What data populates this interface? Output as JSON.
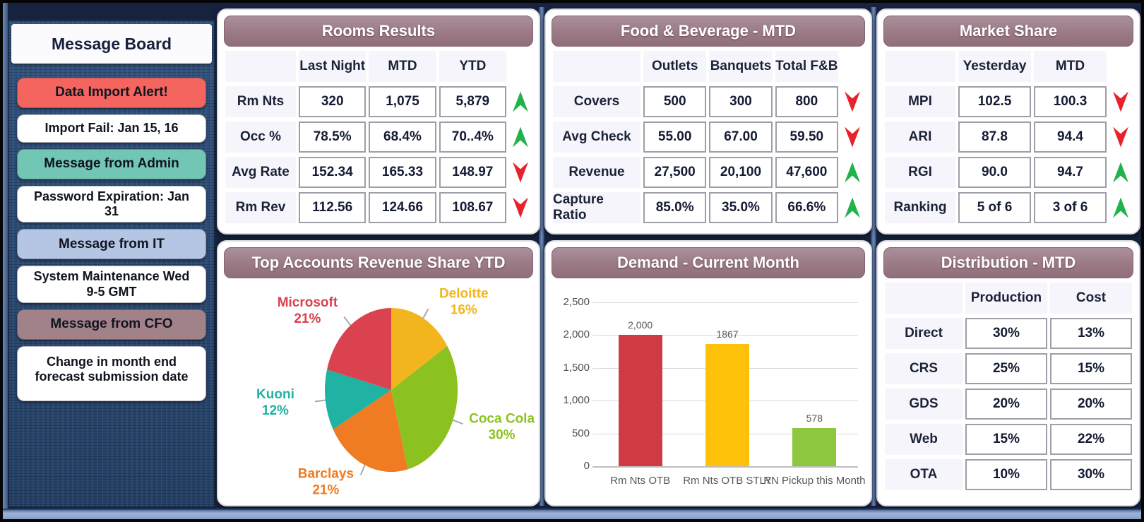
{
  "theme": {
    "band_color": "#9B7A86",
    "trend_up_color": "#21B24B",
    "trend_down_color": "#E8222B",
    "sidebar_bg": "#2C4A74",
    "panel_bg": "#FFFFFF"
  },
  "sidebar": {
    "title": "Message Board",
    "messages": [
      {
        "label": "Data Import Alert!",
        "type": "header",
        "color": "#F4655F"
      },
      {
        "label": "Import Fail: Jan 15, 16",
        "type": "detail",
        "color": "#FFFFFF"
      },
      {
        "label": "Message from Admin",
        "type": "header",
        "color": "#72C7B4"
      },
      {
        "label": "Password Expiration: Jan 31",
        "type": "detail",
        "color": "#FFFFFF"
      },
      {
        "label": "Message from IT",
        "type": "header",
        "color": "#B5C5E4"
      },
      {
        "label": "System Maintenance Wed 9-5 GMT",
        "type": "detail",
        "color": "#FFFFFF"
      },
      {
        "label": "Message from CFO",
        "type": "header",
        "color": "#A28289"
      },
      {
        "label": "Change in month end forecast submission date",
        "type": "detail",
        "color": "#FFFFFF"
      }
    ]
  },
  "panels": {
    "rooms": {
      "title": "Rooms Results",
      "columns": [
        "Last Night",
        "MTD",
        "YTD"
      ],
      "rows": [
        {
          "label": "Rm Nts",
          "values": [
            "320",
            "1,075",
            "5,879"
          ],
          "trend": "up"
        },
        {
          "label": "Occ %",
          "values": [
            "78.5%",
            "68.4%",
            "70..4%"
          ],
          "trend": "up"
        },
        {
          "label": "Avg Rate",
          "values": [
            "152.34",
            "165.33",
            "148.97"
          ],
          "trend": "down"
        },
        {
          "label": "Rm Rev",
          "values": [
            "112.56",
            "124.66",
            "108.67"
          ],
          "trend": "down"
        }
      ]
    },
    "fnb": {
      "title": "Food & Beverage - MTD",
      "columns": [
        "Outlets",
        "Banquets",
        "Total F&B"
      ],
      "rows": [
        {
          "label": "Covers",
          "values": [
            "500",
            "300",
            "800"
          ],
          "trend": "down"
        },
        {
          "label": "Avg Check",
          "values": [
            "55.00",
            "67.00",
            "59.50"
          ],
          "trend": "down"
        },
        {
          "label": "Revenue",
          "values": [
            "27,500",
            "20,100",
            "47,600"
          ],
          "trend": "up"
        },
        {
          "label": "Capture Ratio",
          "values": [
            "85.0%",
            "35.0%",
            "66.6%"
          ],
          "trend": "up"
        }
      ]
    },
    "market": {
      "title": "Market Share",
      "columns": [
        "Yesterday",
        "MTD"
      ],
      "rows": [
        {
          "label": "MPI",
          "values": [
            "102.5",
            "100.3"
          ],
          "trend": "down"
        },
        {
          "label": "ARI",
          "values": [
            "87.8",
            "94.4"
          ],
          "trend": "down"
        },
        {
          "label": "RGI",
          "values": [
            "90.0",
            "94.7"
          ],
          "trend": "up"
        },
        {
          "label": "Ranking",
          "values": [
            "5 of 6",
            "3 of 6"
          ],
          "trend": "up"
        }
      ]
    },
    "distribution": {
      "title": "Distribution - MTD",
      "columns": [
        "Production",
        "Cost"
      ],
      "rows": [
        {
          "label": "Direct",
          "values": [
            "30%",
            "13%"
          ]
        },
        {
          "label": "CRS",
          "values": [
            "25%",
            "15%"
          ]
        },
        {
          "label": "GDS",
          "values": [
            "20%",
            "20%"
          ]
        },
        {
          "label": "Web",
          "values": [
            "15%",
            "22%"
          ]
        },
        {
          "label": "OTA",
          "values": [
            "10%",
            "30%"
          ]
        }
      ]
    }
  },
  "chart_data": [
    {
      "type": "pie",
      "title": "Top Accounts Revenue Share YTD",
      "start_angle_deg": 0,
      "direction": "clockwise",
      "legend_position": "outside-labels",
      "slices": [
        {
          "label": "Deloitte",
          "value": 16,
          "pct_label": "16%",
          "color": "#F2B51D"
        },
        {
          "label": "Coca Cola",
          "value": 30,
          "pct_label": "30%",
          "color": "#8CC220"
        },
        {
          "label": "Barclays",
          "value": 21,
          "pct_label": "21%",
          "color": "#EF7B22"
        },
        {
          "label": "Kuoni",
          "value": 12,
          "pct_label": "12%",
          "color": "#20B2A2"
        },
        {
          "label": "Microsoft",
          "value": 21,
          "pct_label": "21%",
          "color": "#D9424E"
        }
      ]
    },
    {
      "type": "bar",
      "title": "Demand - Current Month",
      "categories": [
        "Rm Nts OTB",
        "Rm Nts OTB STLY",
        "RN Pickup this Month"
      ],
      "values": [
        2000,
        1867,
        578
      ],
      "value_labels": [
        "2,000",
        "1867",
        "578"
      ],
      "colors": [
        "#CF3A45",
        "#FFC20A",
        "#8DC63F"
      ],
      "xlabel": "",
      "ylabel": "",
      "ylim": [
        0,
        2500
      ],
      "ytick_step": 500,
      "ytick_labels": [
        "0",
        "500",
        "1,000",
        "1,500",
        "2,000",
        "2,500"
      ],
      "grid": true,
      "legend": false
    }
  ]
}
